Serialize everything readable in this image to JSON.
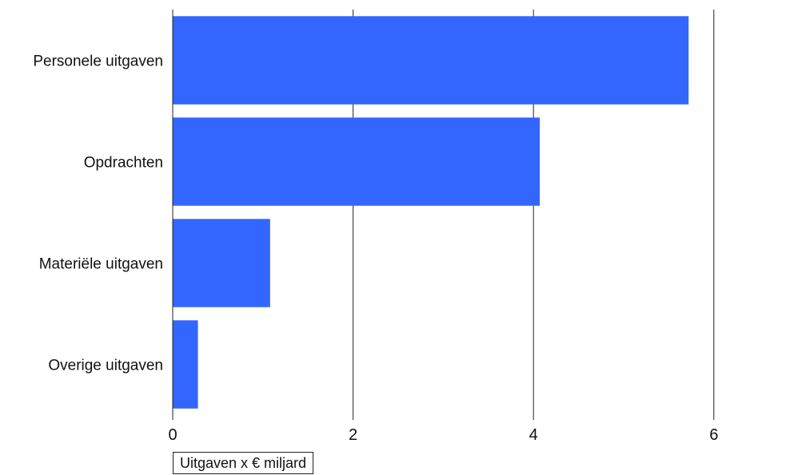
{
  "chart_data": {
    "type": "bar",
    "orientation": "horizontal",
    "categories": [
      "Personele uitgaven",
      "Opdrachten",
      "Materiële uitgaven",
      "Overige uitgaven"
    ],
    "values": [
      5.72,
      4.07,
      1.08,
      0.28
    ],
    "xlabel": "Uitgaven x € miljard",
    "ylabel": "",
    "xlim": [
      0,
      6.8
    ],
    "xticks": [
      0,
      2,
      4,
      6
    ],
    "grid": true,
    "bar_color": "#3366ff"
  }
}
